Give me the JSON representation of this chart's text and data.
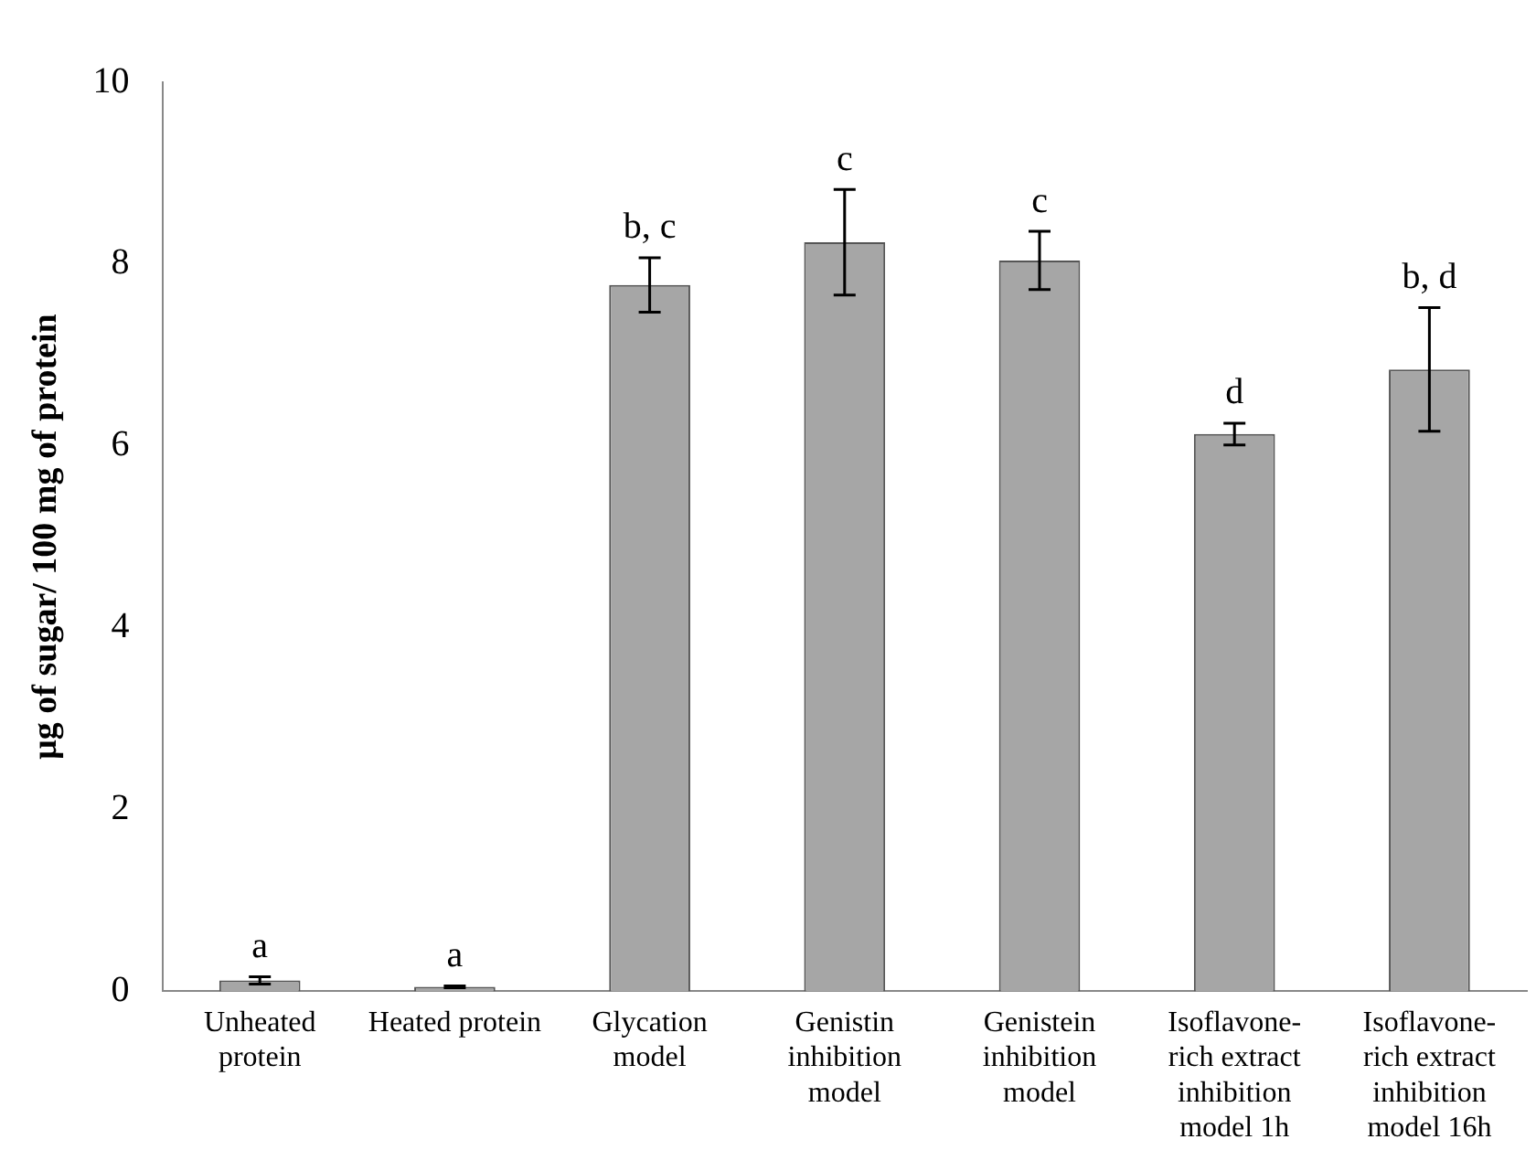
{
  "chart_data": {
    "type": "bar",
    "ylabel": "µg of sugar/ 100 mg of protein",
    "categories": [
      "Unheated protein",
      "Heated protein",
      "Glycation model",
      "Genistin inhibition model",
      "Genistein inhibition model",
      "Isoflavone-rich extract inhibition model 1h",
      "Isoflavone-rich extract inhibition model 16h"
    ],
    "values": [
      0.12,
      0.05,
      7.77,
      8.24,
      8.04,
      6.13,
      6.84
    ],
    "errors": [
      0.04,
      0.01,
      0.3,
      0.58,
      0.32,
      0.12,
      0.68
    ],
    "color": "#a6a6a6",
    "ylim": [
      0,
      10
    ],
    "yticks": [
      0,
      2,
      4,
      6,
      8,
      10
    ],
    "grid": false,
    "legend": false,
    "annotations": [
      {
        "text": "a",
        "x": "Unheated protein",
        "y": 0.16
      },
      {
        "text": "a",
        "x": "Heated protein",
        "y": 0.06
      },
      {
        "text": "b, c",
        "x": "Glycation model",
        "y": 8.07
      },
      {
        "text": "c",
        "x": "Genistin inhibition model",
        "y": 8.82
      },
      {
        "text": "c",
        "x": "Genistein inhibition model",
        "y": 8.36
      },
      {
        "text": "d",
        "x": "Isoflavone-rich extract inhibition model 1h",
        "y": 6.25
      },
      {
        "text": "b, d",
        "x": "Isoflavone-rich extract inhibition model 16h",
        "y": 7.52
      }
    ]
  }
}
